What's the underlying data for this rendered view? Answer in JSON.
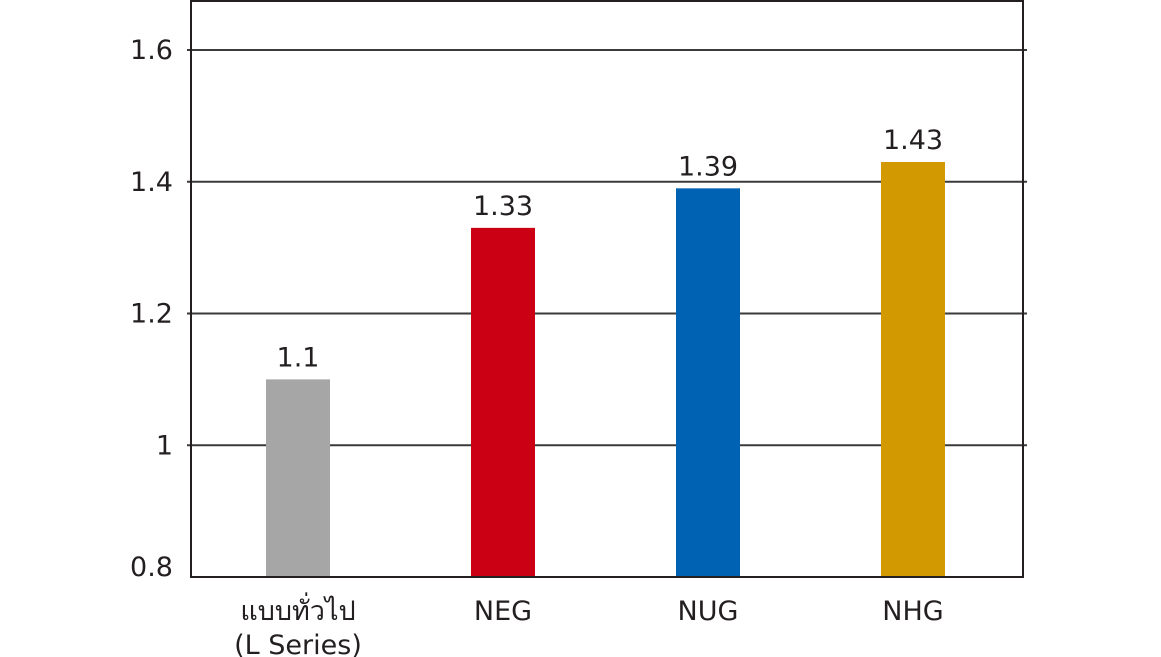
{
  "chart_data": {
    "type": "bar",
    "title": "",
    "xlabel": "",
    "ylabel": "",
    "categories": [
      [
        "แบบทั่วไป",
        "(L Series)"
      ],
      [
        "NEG"
      ],
      [
        "NUG"
      ],
      [
        "NHG"
      ]
    ],
    "values": [
      1.1,
      1.33,
      1.39,
      1.43
    ],
    "value_labels": [
      "1.1",
      "1.33",
      "1.39",
      "1.43"
    ],
    "bar_colors": [
      "#a6a6a6",
      "#cc0014",
      "#0062b2",
      "#d29a00"
    ],
    "ylim": [
      0.8,
      1.6
    ],
    "yticks": [
      0.8,
      1,
      1.2,
      1.4,
      1.6
    ],
    "ytick_labels": [
      "0.8",
      "1",
      "1.2",
      "1.4",
      "1.6"
    ],
    "grid": true,
    "legend": "none"
  }
}
